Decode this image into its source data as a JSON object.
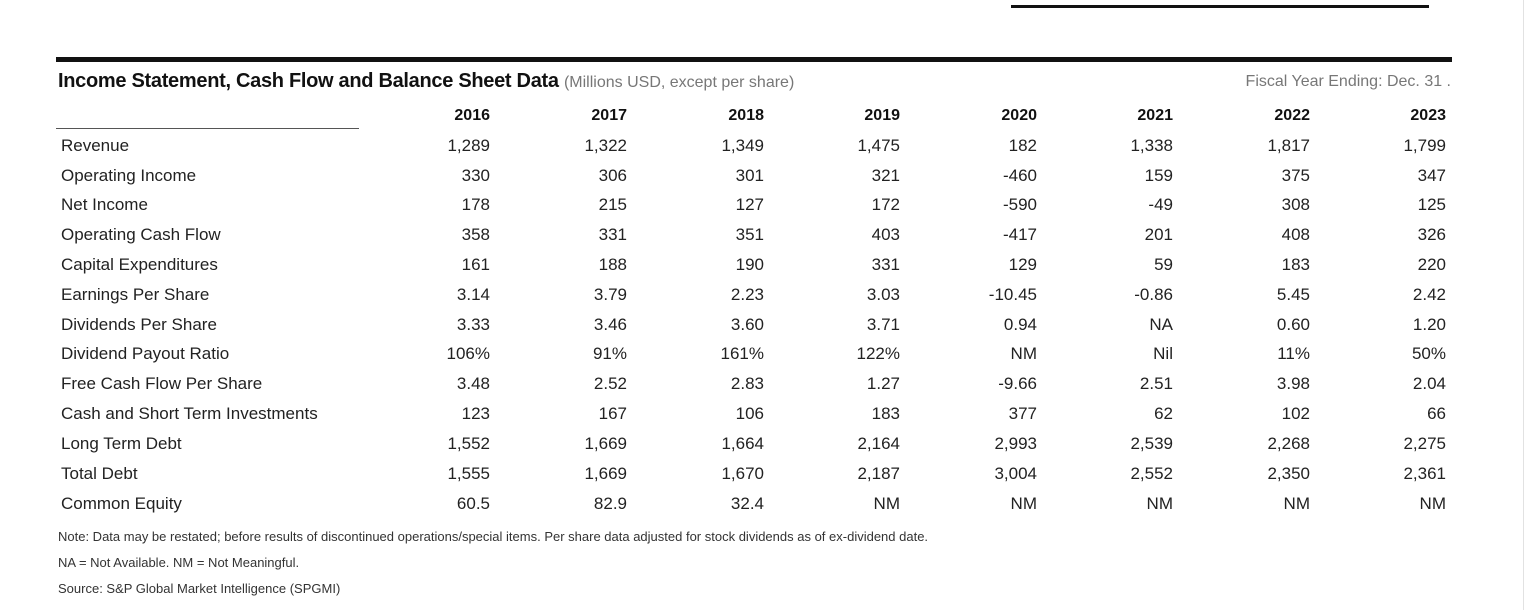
{
  "header": {
    "title": "Income Statement, Cash Flow and Balance Sheet Data",
    "subtitle": "(Millions USD, except per share)",
    "fiscal": "Fiscal Year Ending: Dec. 31 ."
  },
  "years": [
    "2016",
    "2017",
    "2018",
    "2019",
    "2020",
    "2021",
    "2022",
    "2023"
  ],
  "rows": [
    {
      "label": "Revenue",
      "values": [
        "1,289",
        "1,322",
        "1,349",
        "1,475",
        "182",
        "1,338",
        "1,817",
        "1,799"
      ]
    },
    {
      "label": "Operating Income",
      "values": [
        "330",
        "306",
        "301",
        "321",
        "-460",
        "159",
        "375",
        "347"
      ]
    },
    {
      "label": "Net Income",
      "values": [
        "178",
        "215",
        "127",
        "172",
        "-590",
        "-49",
        "308",
        "125"
      ]
    },
    {
      "label": "Operating Cash Flow",
      "values": [
        "358",
        "331",
        "351",
        "403",
        "-417",
        "201",
        "408",
        "326"
      ]
    },
    {
      "label": "Capital Expenditures",
      "values": [
        "161",
        "188",
        "190",
        "331",
        "129",
        "59",
        "183",
        "220"
      ]
    },
    {
      "label": "Earnings Per Share",
      "values": [
        "3.14",
        "3.79",
        "2.23",
        "3.03",
        "-10.45",
        "-0.86",
        "5.45",
        "2.42"
      ]
    },
    {
      "label": "Dividends Per Share",
      "values": [
        "3.33",
        "3.46",
        "3.60",
        "3.71",
        "0.94",
        "NA",
        "0.60",
        "1.20"
      ]
    },
    {
      "label": "Dividend Payout Ratio",
      "values": [
        "106%",
        "91%",
        "161%",
        "122%",
        "NM",
        "Nil",
        "11%",
        "50%"
      ]
    },
    {
      "label": "Free Cash Flow Per Share",
      "values": [
        "3.48",
        "2.52",
        "2.83",
        "1.27",
        "-9.66",
        "2.51",
        "3.98",
        "2.04"
      ]
    },
    {
      "label": "Cash and Short Term Investments",
      "values": [
        "123",
        "167",
        "106",
        "183",
        "377",
        "62",
        "102",
        "66"
      ]
    },
    {
      "label": "Long Term Debt",
      "values": [
        "1,552",
        "1,669",
        "1,664",
        "2,164",
        "2,993",
        "2,539",
        "2,268",
        "2,275"
      ]
    },
    {
      "label": "Total Debt",
      "values": [
        "1,555",
        "1,669",
        "1,670",
        "2,187",
        "3,004",
        "2,552",
        "2,350",
        "2,361"
      ]
    },
    {
      "label": "Common Equity",
      "values": [
        "60.5",
        "82.9",
        "32.4",
        "NM",
        "NM",
        "NM",
        "NM",
        "NM"
      ]
    }
  ],
  "notes": {
    "line1": "Note: Data may be restated; before results of discontinued operations/special items. Per share data adjusted for stock dividends as of ex-dividend date.",
    "line2": "NA = Not Available. NM = Not Meaningful.",
    "line3": "Source: S&P Global Market Intelligence (SPGMI)"
  }
}
